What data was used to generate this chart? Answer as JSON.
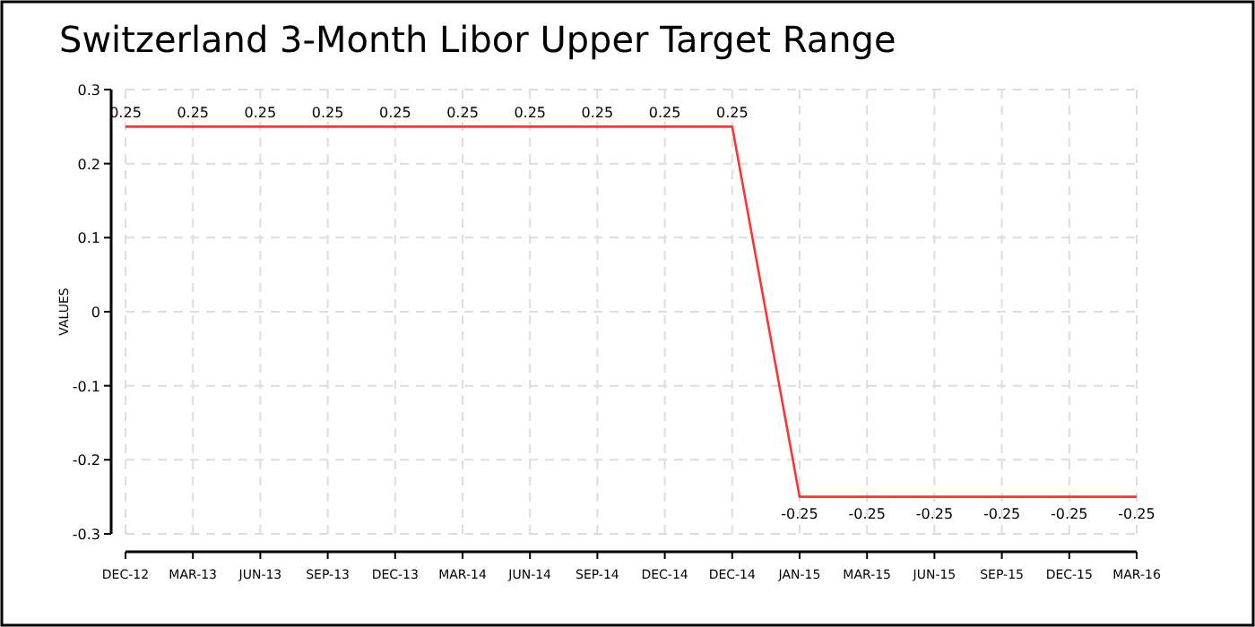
{
  "chart_data": {
    "type": "line",
    "title": "Switzerland 3-Month Libor Upper Target Range",
    "ylabel": "VALUES",
    "categories": [
      "DEC-12",
      "MAR-13",
      "JUN-13",
      "SEP-13",
      "DEC-13",
      "MAR-14",
      "JUN-14",
      "SEP-14",
      "DEC-14",
      "DEC-14",
      "JAN-15",
      "MAR-15",
      "JUN-15",
      "SEP-15",
      "DEC-15",
      "MAR-16"
    ],
    "series": [
      {
        "color": "#ff3333",
        "values": [
          0.25,
          0.25,
          0.25,
          0.25,
          0.25,
          0.25,
          0.25,
          0.25,
          0.25,
          0.25,
          -0.25,
          -0.25,
          -0.25,
          -0.25,
          -0.25,
          -0.25
        ]
      }
    ],
    "ylim": [
      -0.3,
      0.3
    ],
    "yticks": [
      -0.3,
      -0.2,
      -0.1,
      0,
      0.1,
      0.2,
      0.3
    ],
    "grid": true,
    "data_labels": true,
    "marker": "none",
    "line_style": "solid"
  }
}
